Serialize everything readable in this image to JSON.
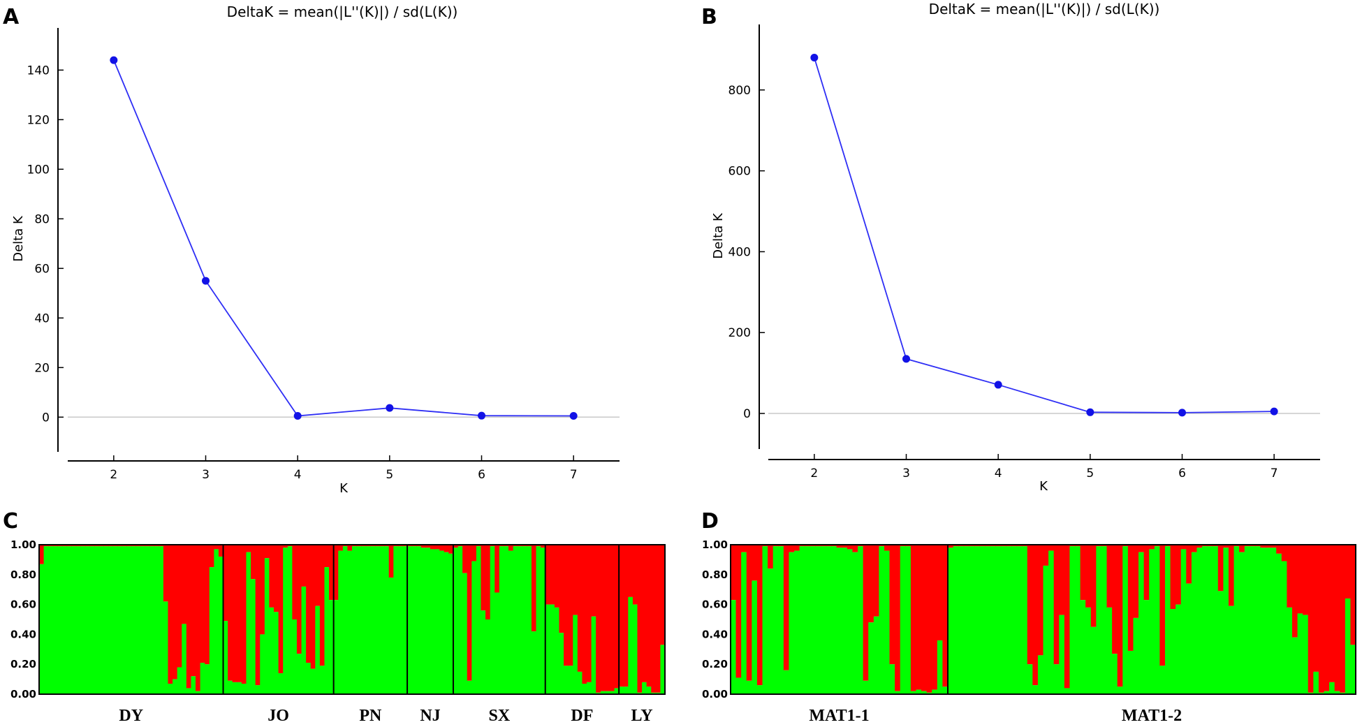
{
  "panel_labels": {
    "a": "A",
    "b": "B",
    "c": "C",
    "d": "D"
  },
  "colors": {
    "line": "#2e2ef5",
    "marker": "#1212e6",
    "green": "#00ff00",
    "red": "#ff0000",
    "zero_line": "#c8c8c8",
    "axis": "#000000"
  },
  "chart_data": [
    {
      "id": "A",
      "type": "line",
      "title": "DeltaK = mean(|L''(K)|) / sd(L(K))",
      "xlabel": "K",
      "ylabel": "Delta K",
      "x": [
        2,
        3,
        4,
        5,
        6,
        7
      ],
      "y": [
        144,
        55,
        0.5,
        3.7,
        0.6,
        0.5
      ],
      "xlim": [
        1.5,
        7.5
      ],
      "ylim": [
        -14,
        157
      ],
      "xticks": [
        "2",
        "3",
        "4",
        "5",
        "6",
        "7"
      ],
      "yticks": [
        "0",
        "20",
        "40",
        "60",
        "80",
        "100",
        "120",
        "140"
      ],
      "reference_line_y": 0
    },
    {
      "id": "B",
      "type": "line",
      "title": "DeltaK = mean(|L''(K)|) / sd(L(K))",
      "xlabel": "K",
      "ylabel": "Delta K",
      "x": [
        2,
        3,
        4,
        5,
        6,
        7
      ],
      "y": [
        880,
        135,
        71,
        3,
        2,
        5
      ],
      "xlim": [
        1.5,
        7.5
      ],
      "ylim": [
        -88,
        962
      ],
      "xticks": [
        "2",
        "3",
        "4",
        "5",
        "6",
        "7"
      ],
      "yticks": [
        "0",
        "200",
        "400",
        "600",
        "800"
      ],
      "reference_line_y": 0
    },
    {
      "id": "C",
      "type": "bar",
      "stacked": true,
      "ylim": [
        0,
        1
      ],
      "yticks": [
        "0.00",
        "0.20",
        "0.40",
        "0.60",
        "0.80",
        "1.00"
      ],
      "series_names": [
        "cluster-green",
        "cluster-red"
      ],
      "groups": [
        {
          "label": "DY",
          "green": [
            0.87,
            0.99,
            0.99,
            0.99,
            0.99,
            0.99,
            0.99,
            0.99,
            0.99,
            0.99,
            0.99,
            0.99,
            0.99,
            0.99,
            0.99,
            0.99,
            0.99,
            0.99,
            0.99,
            0.99,
            0.99,
            0.99,
            0.99,
            0.99,
            0.99,
            0.99,
            0.99,
            0.62,
            0.07,
            0.1,
            0.18,
            0.47,
            0.04,
            0.12,
            0.02,
            0.21,
            0.2,
            0.85,
            0.97,
            0.92
          ]
        },
        {
          "label": "JO",
          "green": [
            0.49,
            0.09,
            0.08,
            0.08,
            0.07,
            0.95,
            0.77,
            0.06,
            0.4,
            0.91,
            0.58,
            0.55,
            0.14,
            0.98,
            0.99,
            0.5,
            0.27,
            0.72,
            0.21,
            0.17,
            0.59,
            0.19,
            0.85,
            0.63
          ]
        },
        {
          "label": "PN",
          "green": [
            0.63,
            0.96,
            0.99,
            0.96,
            0.99,
            0.99,
            0.99,
            0.99,
            0.99,
            0.99,
            0.99,
            0.99,
            0.78,
            0.99,
            0.99,
            0.99
          ]
        },
        {
          "label": "NJ",
          "green": [
            0.99,
            0.99,
            0.99,
            0.98,
            0.98,
            0.97,
            0.97,
            0.96,
            0.95,
            0.94
          ]
        },
        {
          "label": "SX",
          "green": [
            0.98,
            0.99,
            0.81,
            0.09,
            0.89,
            0.99,
            0.56,
            0.5,
            0.99,
            0.68,
            0.99,
            0.99,
            0.96,
            0.99,
            0.99,
            0.99,
            0.99,
            0.42,
            0.99,
            0.98
          ]
        },
        {
          "label": "DF",
          "green": [
            0.6,
            0.6,
            0.58,
            0.41,
            0.19,
            0.19,
            0.53,
            0.15,
            0.07,
            0.08,
            0.52,
            0.01,
            0.02,
            0.02,
            0.02,
            0.04
          ]
        },
        {
          "label": "LY",
          "green": [
            0.05,
            0.05,
            0.65,
            0.6,
            0.01,
            0.08,
            0.05,
            0.01,
            0.01,
            0.33
          ]
        }
      ]
    },
    {
      "id": "D",
      "type": "bar",
      "stacked": true,
      "ylim": [
        0,
        1
      ],
      "yticks": [
        "0.00",
        "0.20",
        "0.40",
        "0.60",
        "0.80",
        "1.00"
      ],
      "series_names": [
        "cluster-green",
        "cluster-red"
      ],
      "groups": [
        {
          "label": "MAT1-1",
          "green": [
            0.63,
            0.11,
            0.95,
            0.09,
            0.76,
            0.06,
            0.99,
            0.84,
            0.99,
            0.99,
            0.16,
            0.95,
            0.96,
            0.99,
            0.99,
            0.99,
            0.99,
            0.99,
            0.99,
            0.99,
            0.98,
            0.98,
            0.97,
            0.95,
            0.99,
            0.09,
            0.48,
            0.52,
            0.99,
            0.96,
            0.2,
            0.02,
            0.99,
            0.99,
            0.02,
            0.03,
            0.02,
            0.01,
            0.03,
            0.36,
            0.05
          ]
        },
        {
          "label": "MAT1-2",
          "green": [
            0.98,
            0.99,
            0.99,
            0.99,
            0.99,
            0.99,
            0.99,
            0.99,
            0.99,
            0.99,
            0.99,
            0.99,
            0.99,
            0.99,
            0.99,
            0.2,
            0.06,
            0.26,
            0.86,
            0.96,
            0.2,
            0.53,
            0.04,
            0.99,
            0.99,
            0.63,
            0.58,
            0.45,
            0.99,
            0.99,
            0.58,
            0.27,
            0.05,
            0.99,
            0.29,
            0.51,
            0.95,
            0.63,
            0.97,
            0.99,
            0.19,
            0.99,
            0.57,
            0.6,
            0.97,
            0.74,
            0.95,
            0.98,
            0.99,
            0.99,
            0.99,
            0.69,
            0.98,
            0.59,
            0.99,
            0.95,
            0.99,
            0.99,
            0.99,
            0.98,
            0.98,
            0.98,
            0.94,
            0.89,
            0.58,
            0.38,
            0.54,
            0.53,
            0.01,
            0.15,
            0.01,
            0.02,
            0.08,
            0.02,
            0.01,
            0.64,
            0.33
          ]
        }
      ]
    }
  ]
}
